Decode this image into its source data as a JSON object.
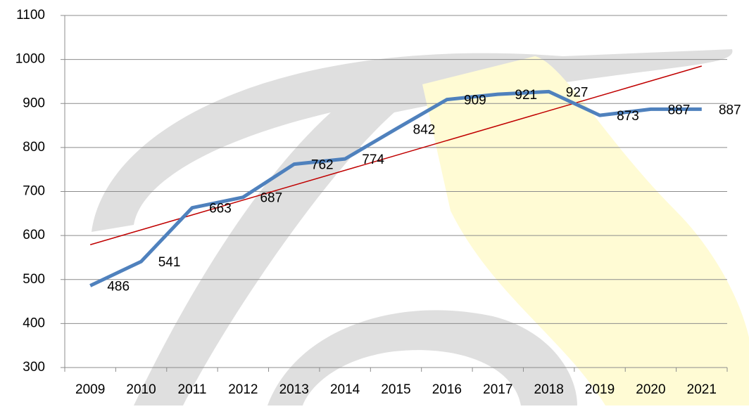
{
  "chart_data": {
    "type": "line",
    "categories": [
      "2009",
      "2010",
      "2011",
      "2012",
      "2013",
      "2014",
      "2015",
      "2016",
      "2017",
      "2018",
      "2019",
      "2020",
      "2021"
    ],
    "series": [
      {
        "color": "#4f81bd",
        "values": [
          486,
          541,
          663,
          687,
          762,
          774,
          842,
          909,
          921,
          927,
          873,
          887,
          887
        ]
      }
    ],
    "trendline": {
      "color": "#c00000",
      "values": [
        579,
        985
      ]
    },
    "ylim": [
      300,
      1100
    ],
    "yticks": [
      300,
      400,
      500,
      600,
      700,
      800,
      900,
      1000,
      1100
    ],
    "grid": true
  }
}
